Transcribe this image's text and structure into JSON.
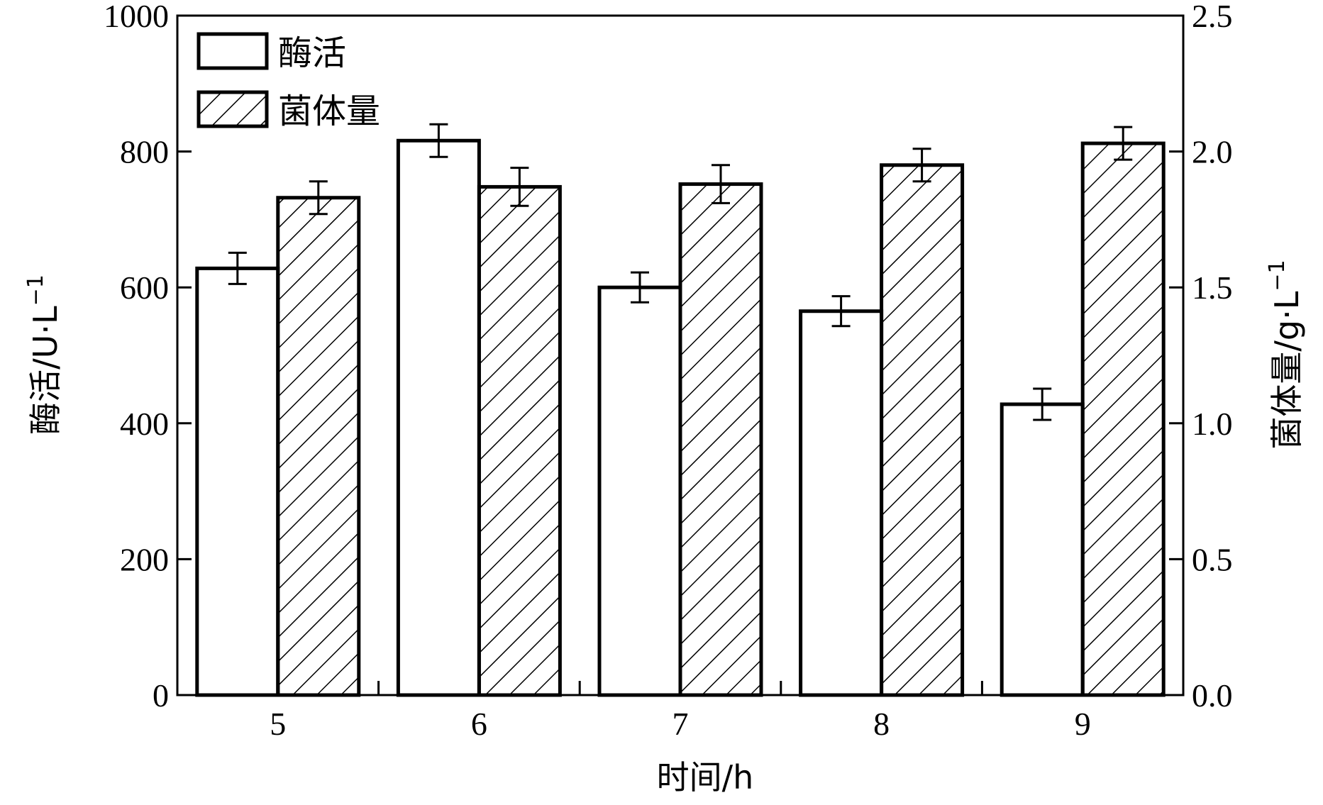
{
  "chart_data": {
    "type": "bar",
    "categories": [
      "5",
      "6",
      "7",
      "8",
      "9"
    ],
    "xlabel": "时间/h",
    "ylabel_left": "酶活/U·L",
    "ylabel_left_sup": "−1",
    "ylabel_right": "菌体量/g·L",
    "ylabel_right_sup": "−1",
    "ylim_left": [
      0,
      1000
    ],
    "ylim_right": [
      0,
      2.5
    ],
    "yticks_left": [
      "0",
      "200",
      "400",
      "600",
      "800",
      "1000"
    ],
    "yticks_right": [
      "0.0",
      "0.5",
      "1.0",
      "1.5",
      "2.0",
      "2.5"
    ],
    "grid": false,
    "legend_position": "top-left",
    "series": [
      {
        "name": "酶活",
        "axis": "left",
        "pattern": "none",
        "values": [
          628,
          816,
          600,
          565,
          428
        ],
        "errors": [
          23,
          24,
          22,
          22,
          23
        ]
      },
      {
        "name": "菌体量",
        "axis": "right",
        "pattern": "hatch",
        "values": [
          1.83,
          1.87,
          1.88,
          1.95,
          2.03
        ],
        "errors": [
          0.06,
          0.07,
          0.07,
          0.06,
          0.06
        ]
      }
    ]
  }
}
